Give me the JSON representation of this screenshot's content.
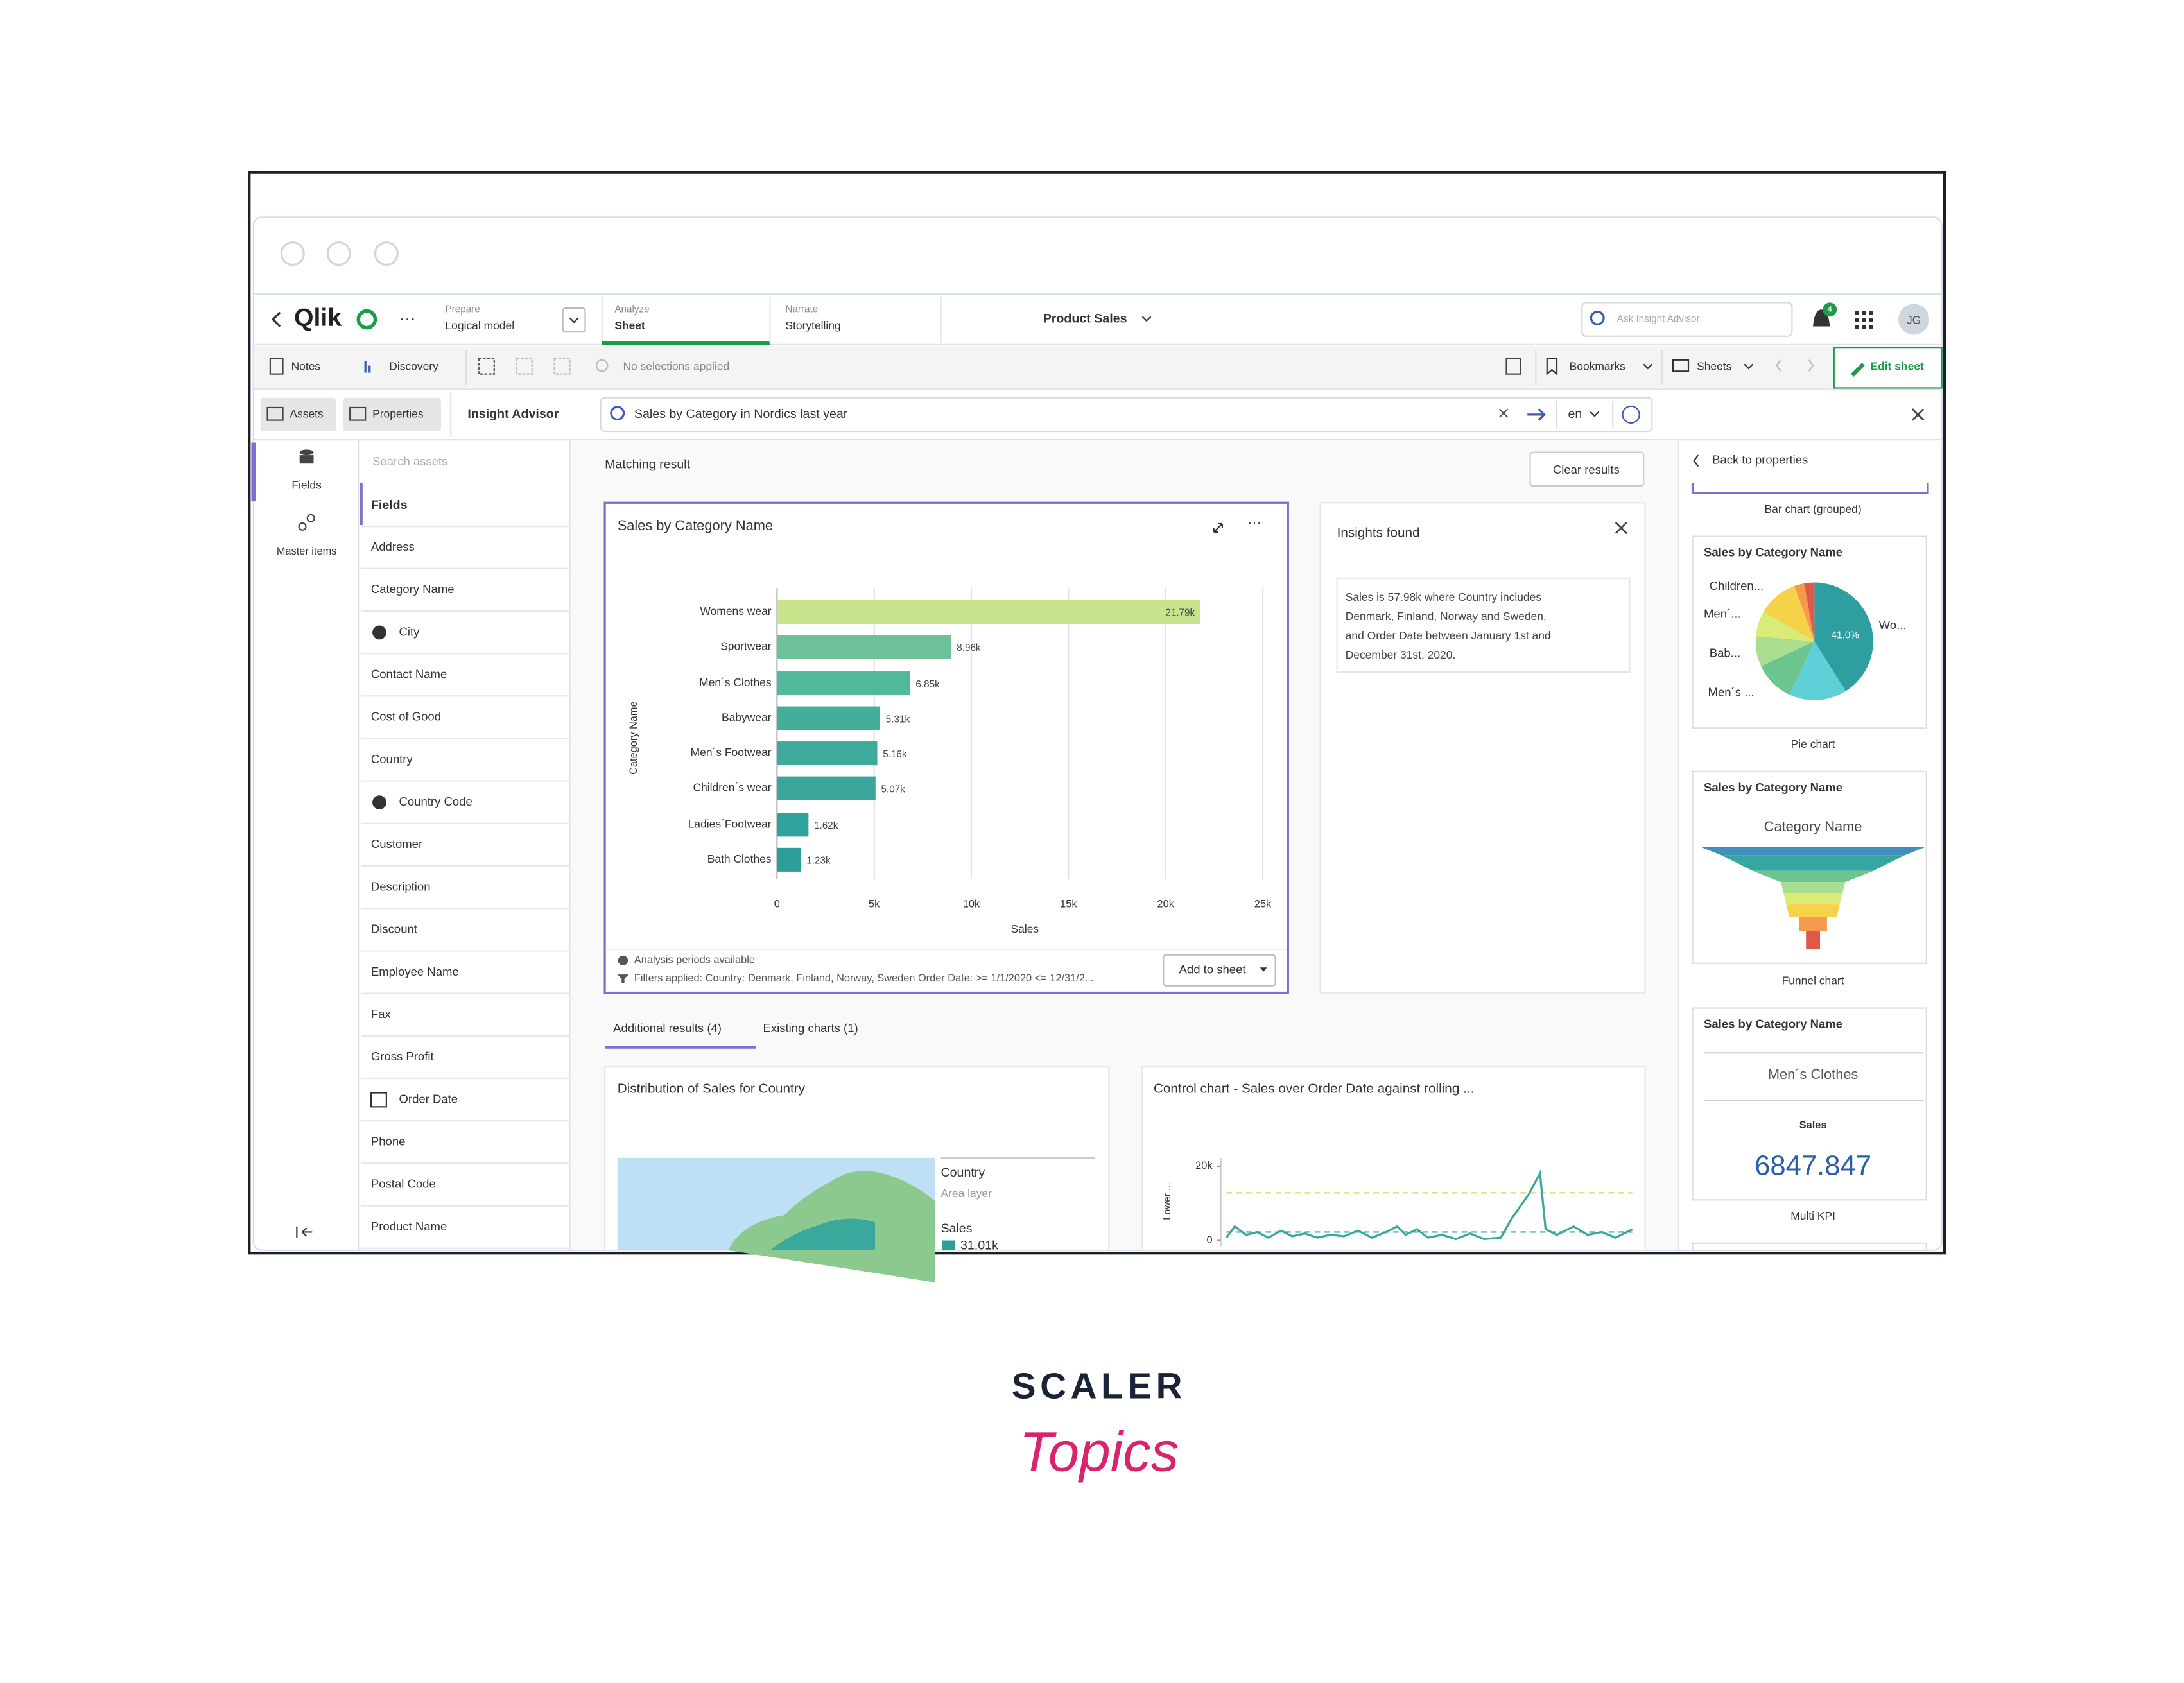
{
  "chart_data": {
    "type": "bar",
    "orientation": "horizontal",
    "title": "Sales by Category Name",
    "x_label": "Sales",
    "y_label": "Category Name",
    "categories": [
      "Womens wear",
      "Sportwear",
      "Men´s Clothes",
      "Babywear",
      "Men´s Footwear",
      "Children´s wear",
      "Ladies´Footwear",
      "Bath Clothes"
    ],
    "values": [
      21790,
      8960,
      6850,
      5310,
      5160,
      5070,
      1620,
      1230
    ],
    "value_labels": [
      "21.79k",
      "8.96k",
      "6.85k",
      "5.31k",
      "5.16k",
      "5.07k",
      "1.62k",
      "1.23k"
    ],
    "colors": [
      "#c6e48b",
      "#6cc19a",
      "#52b79b",
      "#45ae9b",
      "#3faa9b",
      "#3ba79b",
      "#30a29b",
      "#2c9e9a"
    ],
    "xlim": [
      0,
      25000
    ],
    "xticks": [
      0,
      {
        "value": 5000,
        "label": "5k"
      },
      {
        "value": 10000,
        "label": "10k"
      },
      {
        "value": 15000,
        "label": "15k"
      },
      {
        "value": 20000,
        "label": "20k"
      },
      {
        "value": 25000,
        "label": "25k"
      }
    ],
    "grid": true
  },
  "ui": {
    "topbar": {
      "logo": "Qlik",
      "prepare_label": "Prepare",
      "prepare_value": "Logical model",
      "analyze_label": "Analyze",
      "analyze_value": "Sheet",
      "narrate_label": "Narrate",
      "narrate_value": "Storytelling",
      "app_name": "Product Sales",
      "search_placeholder": "Ask Insight Advisor",
      "notifications": "4",
      "avatar": "JG"
    },
    "toolbar": {
      "notes": "Notes",
      "discovery": "Discovery",
      "selections": "No selections applied",
      "bookmarks": "Bookmarks",
      "sheets": "Sheets",
      "edit": "Edit sheet"
    },
    "tabs": {
      "assets": "Assets",
      "properties": "Properties",
      "insight_advisor": "Insight Advisor",
      "query": "Sales by Category in Nordics last year",
      "language": "en"
    },
    "sidebar": {
      "fields_tab": "Fields",
      "master_items_tab": "Master items",
      "search": "Search assets",
      "heading": "Fields",
      "fields": [
        "Address",
        "Category Name",
        "City",
        "Contact Name",
        "Cost of Good",
        "Country",
        "Country Code",
        "Customer",
        "Description",
        "Discount",
        "Employee Name",
        "Fax",
        "Gross Profit",
        "Order Date",
        "Phone",
        "Postal Code",
        "Product Name"
      ]
    },
    "main": {
      "heading": "Matching result",
      "clear": "Clear results",
      "analysis": "Analysis periods available",
      "filters": "Filters applied:  Country: Denmark, Finland, Norway, Sweden  Order Date: >= 1/1/2020 <= 12/31/2...",
      "add": "Add to sheet",
      "insights_title": "Insights found",
      "insights_lines": [
        "Sales is 57.98k where Country includes",
        "Denmark, Finland, Norway and Sweden,",
        "and Order Date between January 1st and",
        "December 31st, 2020."
      ],
      "tab_additional": "Additional results (4)",
      "tab_existing": "Existing charts (1)",
      "map_title": "Distribution of Sales for Country",
      "map_legend": [
        "Country",
        "Area layer",
        "Sales",
        "31.01k"
      ],
      "control_title": "Control chart - Sales over Order Date against rolling ...",
      "control_axis": "Lower ...",
      "control_yticks": [
        0,
        {
          "value": 20000,
          "label": "20k"
        }
      ]
    },
    "right": {
      "back": "Back to properties",
      "grouped": "Bar chart (grouped)",
      "pie_title": "Sales by Category Name",
      "pie_labels": [
        "Children...",
        "Men´...",
        "Bab...",
        "Men´s ...",
        "Wo..."
      ],
      "pie_pct": "41.0%",
      "pie_caption": "Pie chart",
      "funnel_title": "Sales by Category Name",
      "funnel_sub": "Category Name",
      "funnel_caption": "Funnel chart",
      "kpi_title": "Sales by Category Name",
      "kpi_cat": "Men´s Clothes",
      "kpi_label": "Sales",
      "kpi_value": "6847.847",
      "kpi_caption": "Multi KPI"
    }
  },
  "branding": {
    "scaler": "SCALER",
    "topics": "Topics"
  }
}
